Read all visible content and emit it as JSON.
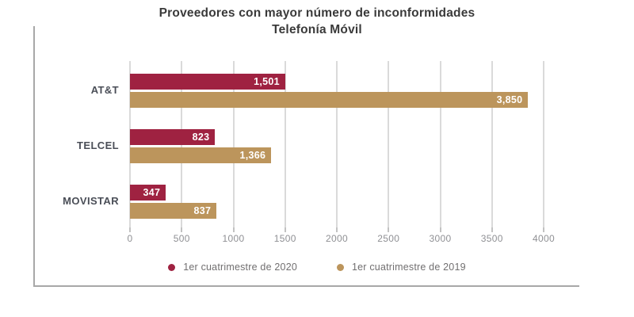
{
  "chart": {
    "title_line1": "Proveedores con mayor número de inconformidades",
    "title_line2": "Telefonía Móvil"
  },
  "chart_data": {
    "type": "bar",
    "orientation": "horizontal",
    "title": "Proveedores con mayor número de inconformidades — Telefonía Móvil",
    "categories": [
      "AT&T",
      "TELCEL",
      "MOVISTAR"
    ],
    "series": [
      {
        "name": "1er cuatrimestre de 2020",
        "color": "#9F2241",
        "values": [
          1501,
          823,
          347
        ],
        "value_labels": [
          "1,501",
          "823",
          "347"
        ]
      },
      {
        "name": "1er cuatrimestre de 2019",
        "color": "#BC955C",
        "values": [
          3850,
          1366,
          837
        ],
        "value_labels": [
          "3,850",
          "1,366",
          "837"
        ]
      }
    ],
    "xlim": [
      0,
      4000
    ],
    "xticks": [
      0,
      500,
      1000,
      1500,
      2000,
      2500,
      3000,
      3500,
      4000
    ],
    "xtick_labels": [
      "0",
      "500",
      "1000",
      "1500",
      "2000",
      "2500",
      "3000",
      "3500",
      "4000"
    ],
    "grid": "vertical",
    "legend_position": "bottom",
    "value_labels_inside_bars": true
  },
  "colors": {
    "series_2020": "#9F2241",
    "series_2019": "#BC955C",
    "gridline": "#DADADA",
    "axis_line": "#A8A8A8",
    "title_text": "#3A3A3A",
    "category_text": "#4A4E57",
    "tick_text": "#8F9094",
    "legend_text": "#716F70",
    "background": "#FFFFFF"
  }
}
